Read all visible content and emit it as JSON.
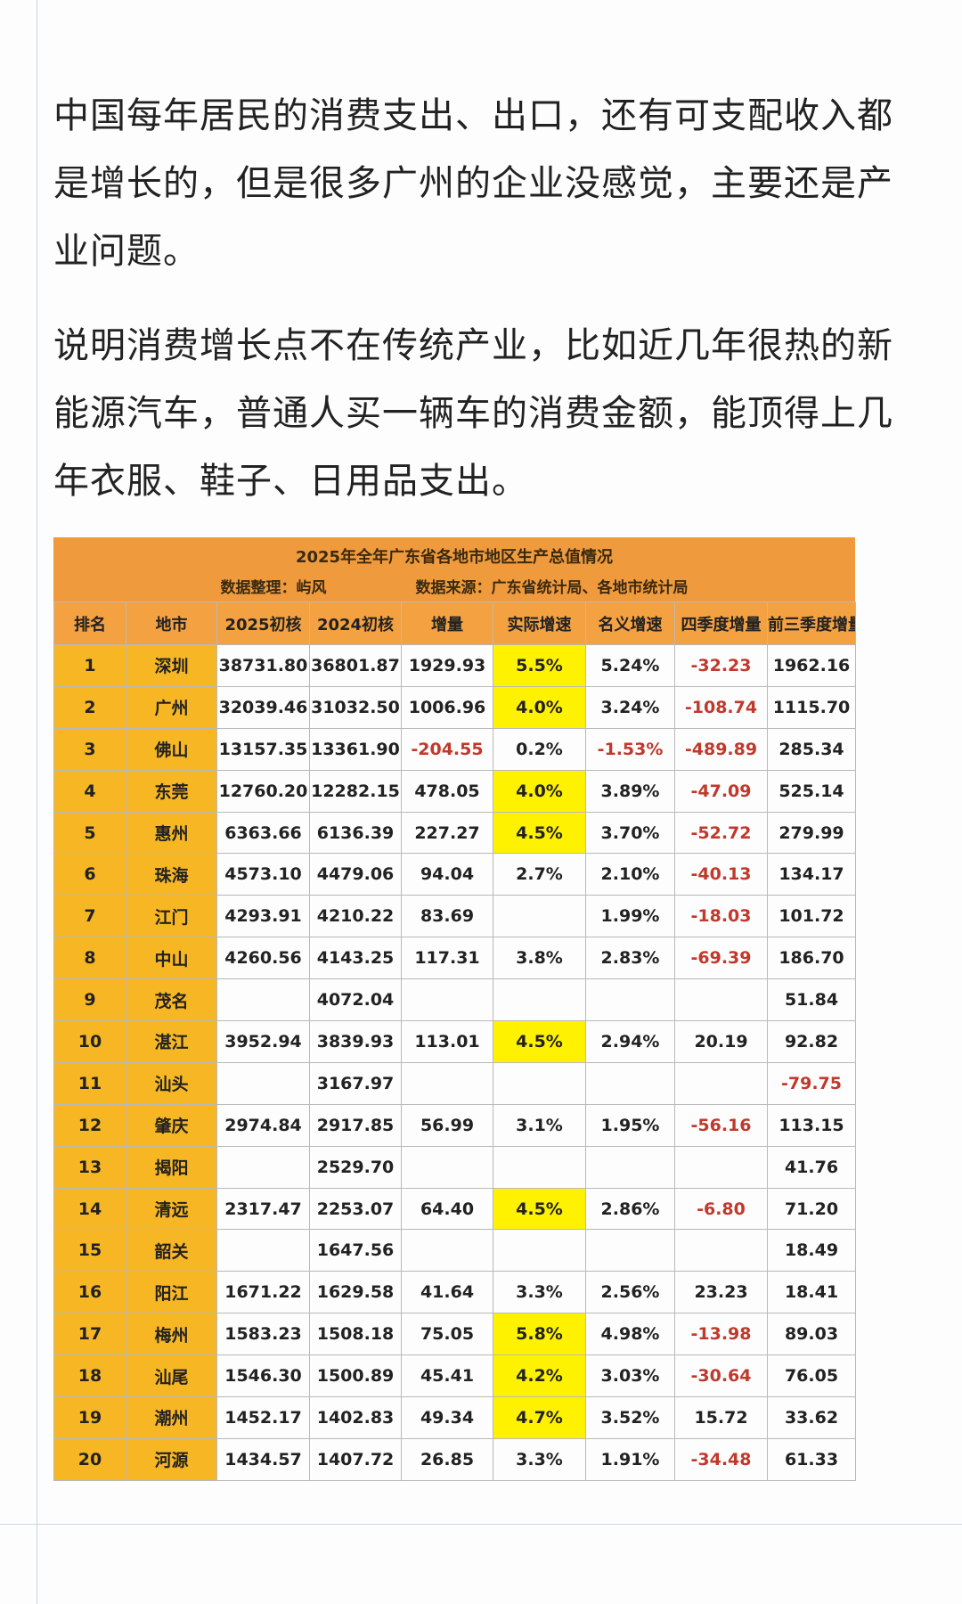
{
  "paragraphs": [
    "中国每年居民的消费支出、出口，还有可支配收入都是增长的，但是很多广州的企业没感觉，主要还是产业问题。",
    "说明消费增长点不在传统产业，比如近几年很热的新能源汽车，普通人买一辆车的消费金额，能顶得上几年衣服、鞋子、日用品支出。"
  ],
  "table": {
    "title": "2025年全年广东省各地市地区生产总值情况",
    "compiler": "数据整理：屿风",
    "source": "数据来源：广东省统计局、各地市统计局",
    "headers": [
      "排名",
      "地市",
      "2025初核",
      "2024初核",
      "增量",
      "实际增速",
      "名义增速",
      "四季度增量",
      "前三季度增量"
    ],
    "highlighted_growth_rows": [
      0,
      1,
      3,
      4,
      9,
      13,
      16,
      17,
      18
    ],
    "rows": [
      [
        "1",
        "深圳",
        "38731.80",
        "36801.87",
        "1929.93",
        "5.5%",
        "5.24%",
        "-32.23",
        "1962.16"
      ],
      [
        "2",
        "广州",
        "32039.46",
        "31032.50",
        "1006.96",
        "4.0%",
        "3.24%",
        "-108.74",
        "1115.70"
      ],
      [
        "3",
        "佛山",
        "13157.35",
        "13361.90",
        "-204.55",
        "0.2%",
        "-1.53%",
        "-489.89",
        "285.34"
      ],
      [
        "4",
        "东莞",
        "12760.20",
        "12282.15",
        "478.05",
        "4.0%",
        "3.89%",
        "-47.09",
        "525.14"
      ],
      [
        "5",
        "惠州",
        "6363.66",
        "6136.39",
        "227.27",
        "4.5%",
        "3.70%",
        "-52.72",
        "279.99"
      ],
      [
        "6",
        "珠海",
        "4573.10",
        "4479.06",
        "94.04",
        "2.7%",
        "2.10%",
        "-40.13",
        "134.17"
      ],
      [
        "7",
        "江门",
        "4293.91",
        "4210.22",
        "83.69",
        "",
        "1.99%",
        "-18.03",
        "101.72"
      ],
      [
        "8",
        "中山",
        "4260.56",
        "4143.25",
        "117.31",
        "3.8%",
        "2.83%",
        "-69.39",
        "186.70"
      ],
      [
        "9",
        "茂名",
        "",
        "4072.04",
        "",
        "",
        "",
        "",
        "51.84"
      ],
      [
        "10",
        "湛江",
        "3952.94",
        "3839.93",
        "113.01",
        "4.5%",
        "2.94%",
        "20.19",
        "92.82"
      ],
      [
        "11",
        "汕头",
        "",
        "3167.97",
        "",
        "",
        "",
        "",
        "-79.75"
      ],
      [
        "12",
        "肇庆",
        "2974.84",
        "2917.85",
        "56.99",
        "3.1%",
        "1.95%",
        "-56.16",
        "113.15"
      ],
      [
        "13",
        "揭阳",
        "",
        "2529.70",
        "",
        "",
        "",
        "",
        "41.76"
      ],
      [
        "14",
        "清远",
        "2317.47",
        "2253.07",
        "64.40",
        "4.5%",
        "2.86%",
        "-6.80",
        "71.20"
      ],
      [
        "15",
        "韶关",
        "",
        "1647.56",
        "",
        "",
        "",
        "",
        "18.49"
      ],
      [
        "16",
        "阳江",
        "1671.22",
        "1629.58",
        "41.64",
        "3.3%",
        "2.56%",
        "23.23",
        "18.41"
      ],
      [
        "17",
        "梅州",
        "1583.23",
        "1508.18",
        "75.05",
        "5.8%",
        "4.98%",
        "-13.98",
        "89.03"
      ],
      [
        "18",
        "汕尾",
        "1546.30",
        "1500.89",
        "45.41",
        "4.2%",
        "3.03%",
        "-30.64",
        "76.05"
      ],
      [
        "19",
        "潮州",
        "1452.17",
        "1402.83",
        "49.34",
        "4.7%",
        "3.52%",
        "15.72",
        "33.62"
      ],
      [
        "20",
        "河源",
        "1434.57",
        "1407.72",
        "26.85",
        "3.3%",
        "1.91%",
        "-34.48",
        "61.33"
      ]
    ]
  }
}
